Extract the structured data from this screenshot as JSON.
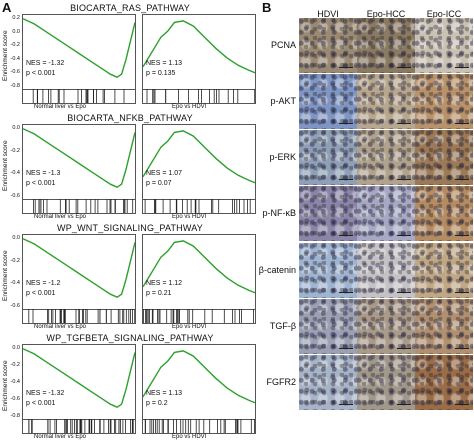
{
  "panel_a": {
    "label": "A",
    "y_axis_label": "Enrichment score",
    "rows": [
      {
        "title": "BIOCARTA_RAS_PATHWAY",
        "ticks": [
          "0.2",
          "0.0",
          "-0.2",
          "-0.4",
          "-0.6",
          "-0.8"
        ],
        "left": {
          "nes": "NES = -1.32",
          "p": "p < 0.001",
          "comparison": "Normal liver vs Epo"
        },
        "right": {
          "nes": "NES = 1.13",
          "p": "p = 0.135",
          "comparison": "Epo vs HDVI"
        }
      },
      {
        "title": "BIOCARTA_NFKB_PATHWAY",
        "ticks": [
          "0.0",
          "-0.2",
          "-0.4",
          "-0.6"
        ],
        "left": {
          "nes": "NES = -1.3",
          "p": "p < 0.001",
          "comparison": "Normal liver vs Epo"
        },
        "right": {
          "nes": "NES = 1.07",
          "p": "p = 0.07",
          "comparison": "Epo vs HDVI"
        }
      },
      {
        "title": "WP_WNT_SIGNALING_PATHWAY",
        "ticks": [
          "0.0",
          "-0.2",
          "-0.4",
          "-0.6"
        ],
        "left": {
          "nes": "NES = -1.2",
          "p": "p < 0.001",
          "comparison": "Normal liver vs Epo"
        },
        "right": {
          "nes": "NES = 1.12",
          "p": "p = 0.21",
          "comparison": "Epo vs HDVI"
        }
      },
      {
        "title": "WP_TGFBETA_SIGNALING_PATHWAY",
        "ticks": [
          "0.0",
          "-0.2",
          "-0.4",
          "-0.6",
          "-0.8"
        ],
        "left": {
          "nes": "NES = -1.32",
          "p": "p < 0.001",
          "comparison": "Normal liver vs Epo"
        },
        "right": {
          "nes": "NES = 1.13",
          "p": "p = 0.2",
          "comparison": "Epo vs HDVI"
        }
      }
    ]
  },
  "panel_b": {
    "label": "B",
    "columns": [
      "HDVI",
      "Epo-HCC",
      "Epo-ICC"
    ],
    "rows": [
      "PCNA",
      "p-AKT",
      "p-ERK",
      "p-NF-κB",
      "β-catenin",
      "TGF-β",
      "FGFR2"
    ]
  },
  "colors": {
    "curve": "#2ca02c",
    "frame": "#555555",
    "stain_blue": "#8fa9cf",
    "stain_brown": "#8a5a2e"
  }
}
